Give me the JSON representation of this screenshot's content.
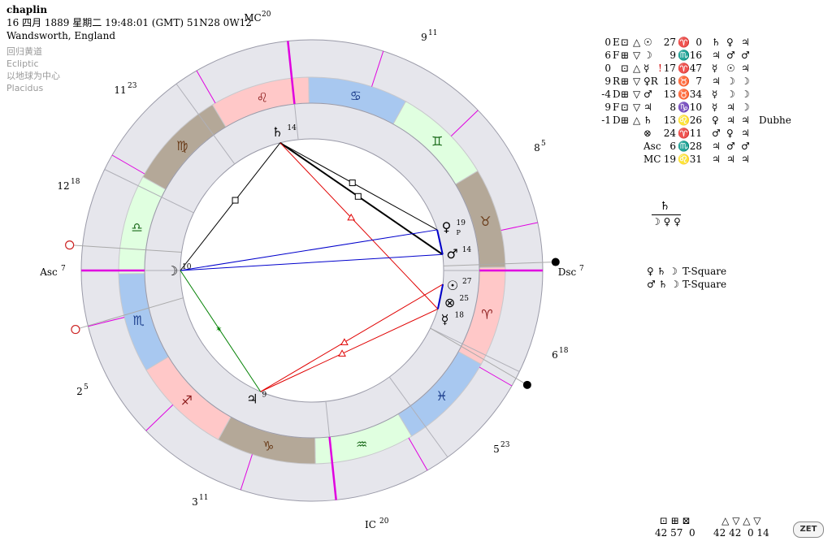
{
  "header": {
    "name": "chaplin",
    "datetime": "16 四月 1889 星期二 19:48:01 (GMT) 51N28 0W12",
    "place": "Wandsworth, England",
    "zodiac": "回归黄道",
    "coord": "Ecliptic",
    "center": "以地球为中心",
    "houses": "Placidus"
  },
  "axes": {
    "asc": "Asc",
    "asc_deg": "7",
    "dsc": "Dsc",
    "dsc_deg": "7",
    "mc": "MC",
    "mc_deg": "20",
    "ic": "IC",
    "ic_deg": "20"
  },
  "house_cusps": [
    {
      "num": "9",
      "deg": "11"
    },
    {
      "num": "8",
      "deg": "5"
    },
    {
      "num": "6",
      "deg": "18"
    },
    {
      "num": "5",
      "deg": "23"
    },
    {
      "num": "3",
      "deg": "11"
    },
    {
      "num": "2",
      "deg": "5"
    },
    {
      "num": "12",
      "deg": "18"
    },
    {
      "num": "11",
      "deg": "23"
    }
  ],
  "signs": [
    "♌",
    "♋",
    "♊",
    "♉",
    "♈",
    "♓",
    "♒",
    "♑",
    "♐",
    "♏",
    "♎",
    "♍"
  ],
  "planets_on_chart": [
    {
      "glyph": "♄",
      "deg": "14"
    },
    {
      "glyph": "♀",
      "deg": "19"
    },
    {
      "glyph": "♂",
      "deg": "14"
    },
    {
      "glyph": "☉",
      "deg": "27"
    },
    {
      "glyph": "⊗",
      "deg": "25"
    },
    {
      "glyph": "☿",
      "deg": "18"
    },
    {
      "glyph": "♃",
      "deg": "9"
    },
    {
      "glyph": "☽",
      "deg": "10"
    }
  ],
  "retro_mark": "P",
  "table": [
    {
      "n": "0",
      "l": "E",
      "a1": "⊡",
      "a2": "△",
      "a3": "☉",
      "mark": "",
      "deg": "27",
      "sign": "♈",
      "min": "0",
      "r1": "♄",
      "r2": "♀",
      "r3": "♃",
      "star": ""
    },
    {
      "n": "6",
      "l": "F",
      "a1": "⊞",
      "a2": "▽",
      "a3": "☽",
      "mark": "",
      "deg": "9",
      "sign": "♏",
      "min": "16",
      "r1": "♃",
      "r2": "♂",
      "r3": "♂",
      "star": ""
    },
    {
      "n": "0",
      "l": "",
      "a1": "⊡",
      "a2": "△",
      "a3": "☿",
      "mark": "!",
      "deg": "17",
      "sign": "♈",
      "min": "47",
      "r1": "☿",
      "r2": "☉",
      "r3": "♃",
      "star": ""
    },
    {
      "n": "9",
      "l": "R",
      "a1": "⊞",
      "a2": "▽",
      "a3": "♀R",
      "mark": "",
      "deg": "18",
      "sign": "♉",
      "min": "7",
      "r1": "♃",
      "r2": "☽",
      "r3": "☽",
      "star": ""
    },
    {
      "n": "-4",
      "l": "D",
      "a1": "⊞",
      "a2": "▽",
      "a3": "♂",
      "mark": "",
      "deg": "13",
      "sign": "♉",
      "min": "34",
      "r1": "☿",
      "r2": "☽",
      "r3": "☽",
      "star": ""
    },
    {
      "n": "9",
      "l": "F",
      "a1": "⊡",
      "a2": "▽",
      "a3": "♃",
      "mark": "",
      "deg": "8",
      "sign": "♑",
      "min": "10",
      "r1": "☿",
      "r2": "♃",
      "r3": "☽",
      "star": ""
    },
    {
      "n": "-1",
      "l": "D",
      "a1": "⊞",
      "a2": "△",
      "a3": "♄",
      "mark": "",
      "deg": "13",
      "sign": "♌",
      "min": "26",
      "r1": "♀",
      "r2": "♃",
      "r3": "♃",
      "star": "Dubhe"
    },
    {
      "n": "",
      "l": "",
      "a1": "",
      "a2": "",
      "a3": "⊗",
      "mark": "",
      "deg": "24",
      "sign": "♈",
      "min": "11",
      "r1": "♂",
      "r2": "♀",
      "r3": "♃",
      "star": ""
    },
    {
      "n": "",
      "l": "",
      "a1": "",
      "a2": "",
      "a3": "Asc",
      "mark": "",
      "deg": "6",
      "sign": "♏",
      "min": "28",
      "r1": "♃",
      "r2": "♂",
      "r3": "♂",
      "star": ""
    },
    {
      "n": "",
      "l": "",
      "a1": "",
      "a2": "",
      "a3": "MC",
      "mark": "",
      "deg": "19",
      "sign": "♌",
      "min": "31",
      "r1": "♃",
      "r2": "♃",
      "r3": "♃",
      "star": ""
    }
  ],
  "dispositor": {
    "top": "♄",
    "bottom": "☽ ♀ ♀"
  },
  "patterns": [
    {
      "planets": "♀ ♄ ☽",
      "label": "T-Square"
    },
    {
      "planets": "♂ ♄ ☽",
      "label": "T-Square"
    }
  ],
  "aspect_stats": {
    "symbols_a": "⊡ ⊞ ⊠",
    "counts_a": "42 57  0",
    "symbols_b": "△ ▽ △ ▽",
    "counts_b": "42 42  0 14"
  },
  "zet_button": "ZET",
  "colors": {
    "fire": "#ffc8c8",
    "earth": "#b4a898",
    "air": "#e0ffe0",
    "water": "#a8c8f0",
    "house_ring": "#e6e6ec",
    "axis": "#e000e0",
    "aspect_red": "#e00000",
    "aspect_blue": "#0000cc",
    "aspect_green": "#008000"
  }
}
